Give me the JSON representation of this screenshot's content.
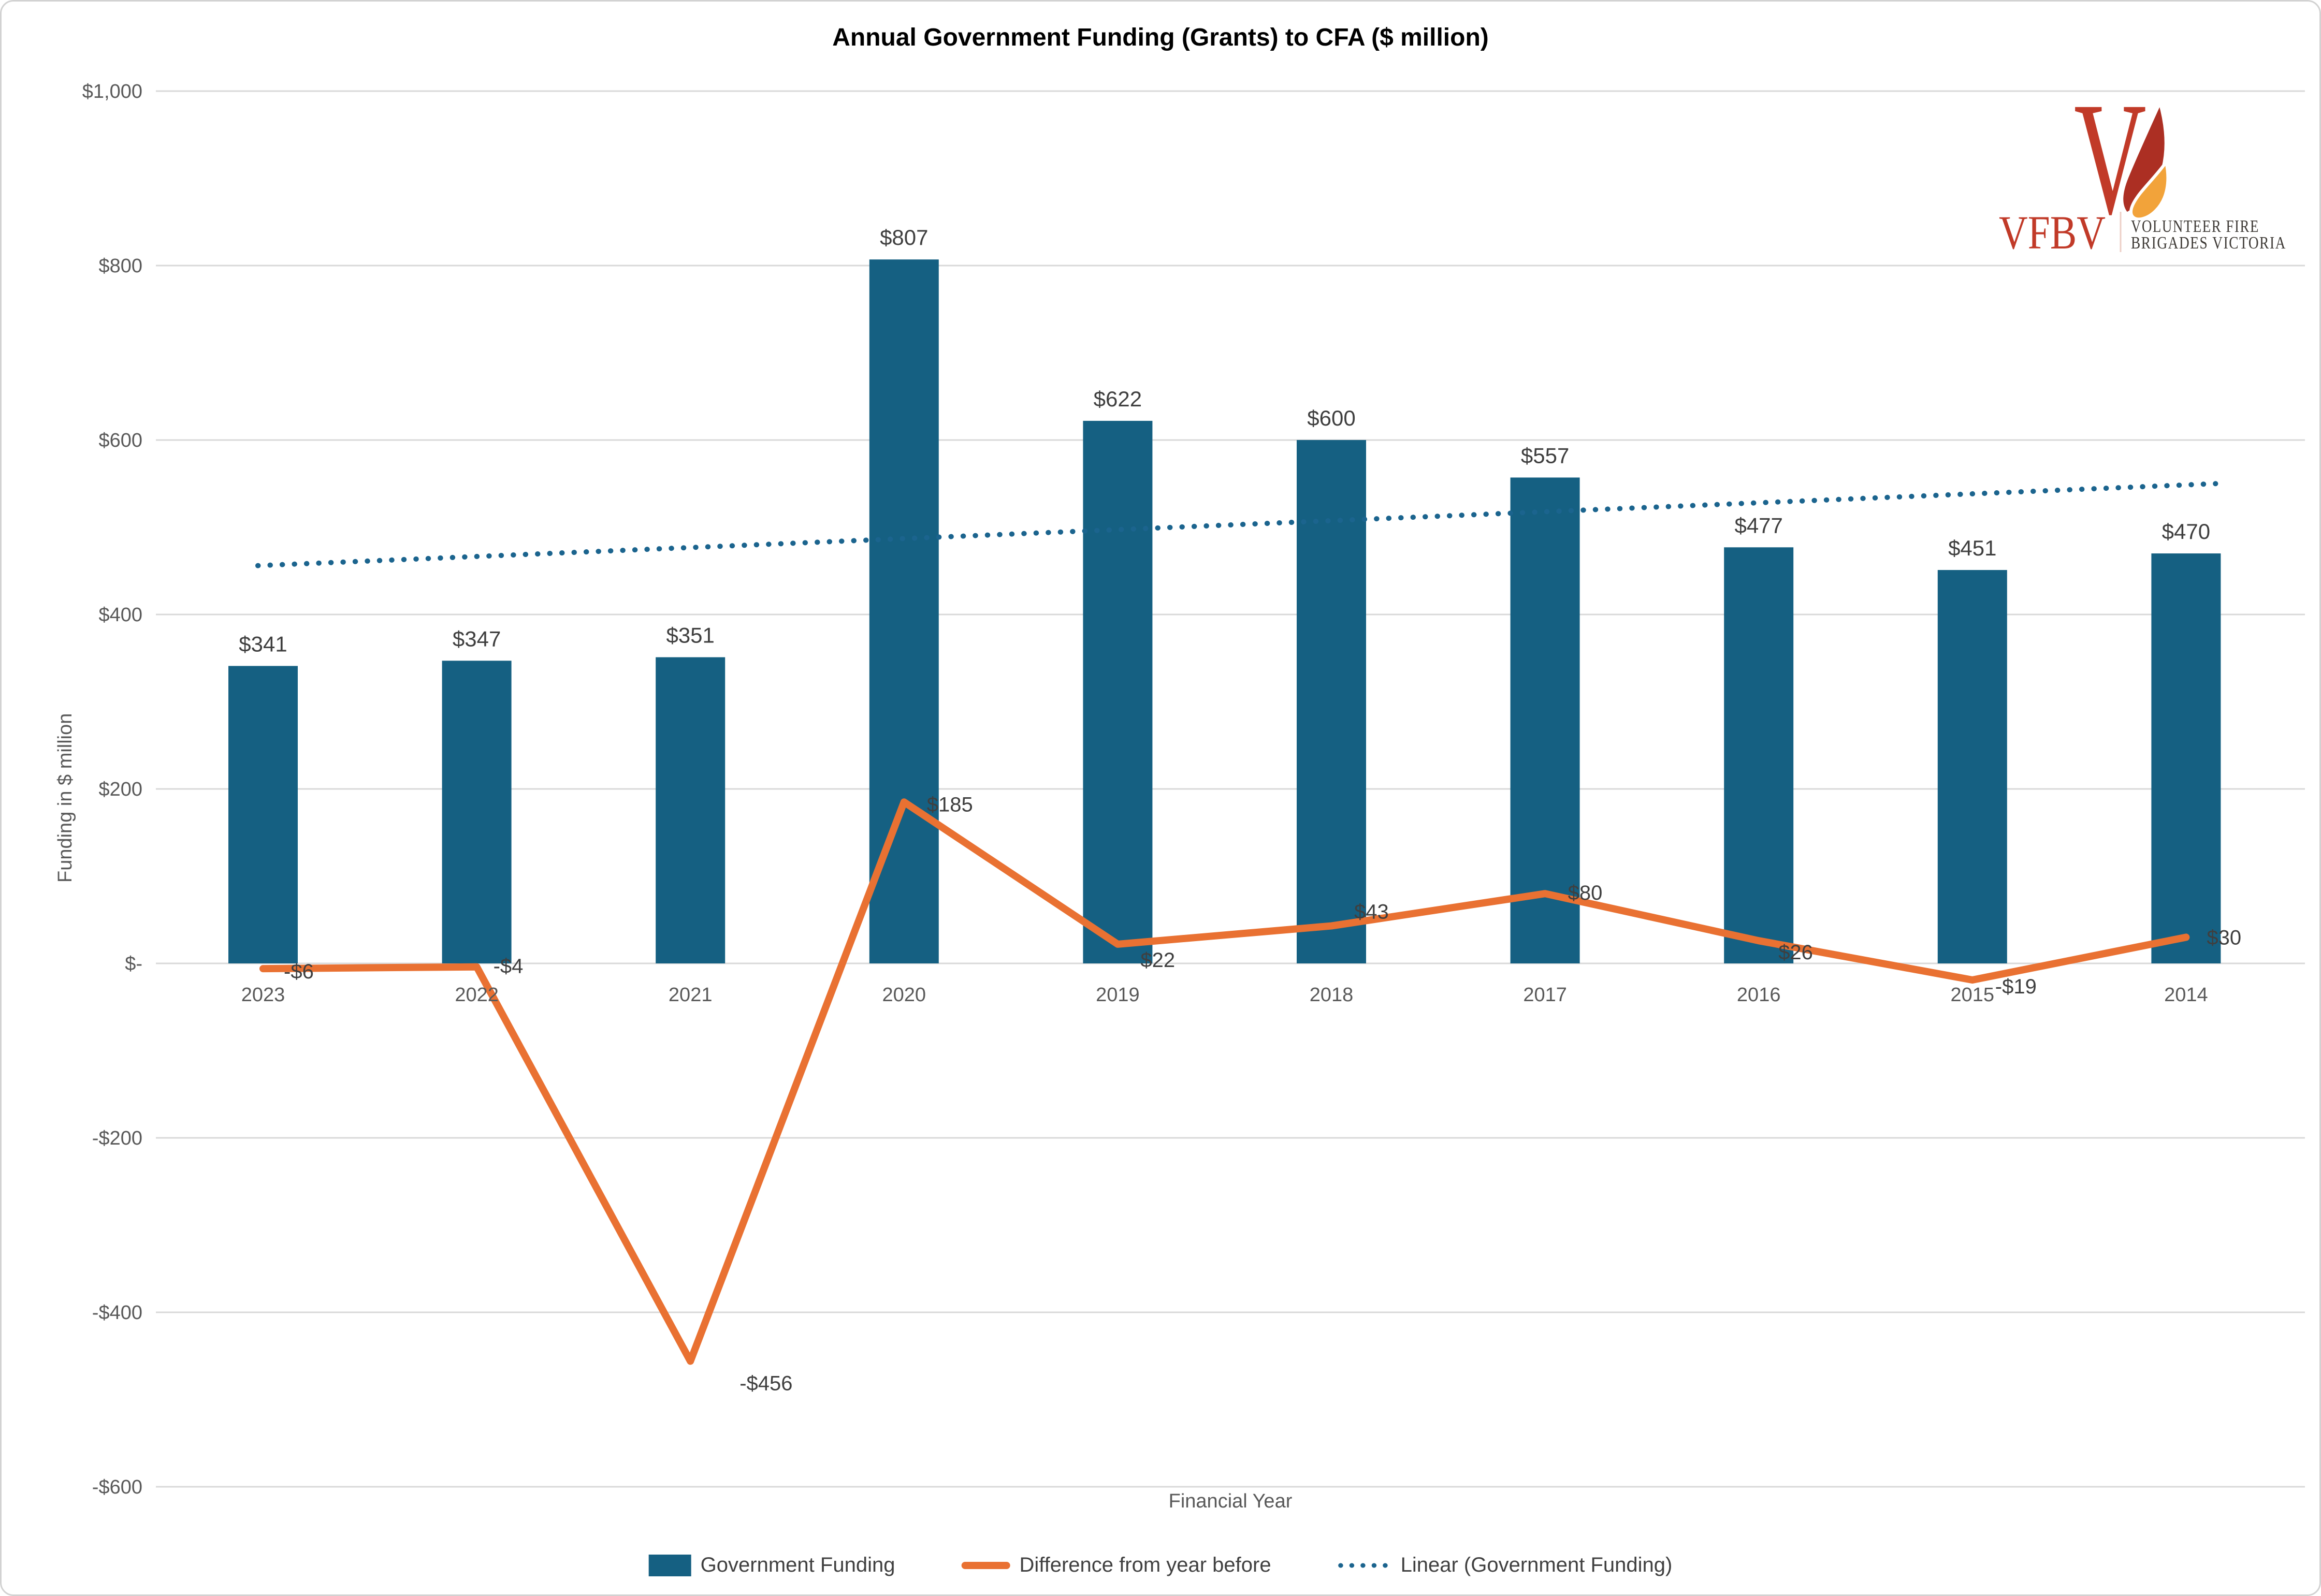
{
  "title": "Annual Government Funding (Grants) to CFA ($ million)",
  "logo": {
    "acronym": "VFBV",
    "name_line1": "VOLUNTEER FIRE",
    "name_line2": "BRIGADES VICTORIA",
    "colors": {
      "red": "#c13a28",
      "flame_dark": "#ac2f23",
      "flame_orange": "#f2a33a",
      "name_text": "#3d3935"
    }
  },
  "chart_data": {
    "type": "bar",
    "categories": [
      "2023",
      "2022",
      "2021",
      "2020",
      "2019",
      "2018",
      "2017",
      "2016",
      "2015",
      "2014"
    ],
    "series": [
      {
        "name": "Government Funding",
        "type": "bar",
        "color": "#156082",
        "values": [
          341,
          347,
          351,
          807,
          622,
          600,
          557,
          477,
          451,
          470
        ],
        "labels": [
          "$341",
          "$347",
          "$351",
          "$807",
          "$622",
          "$600",
          "$557",
          "$477",
          "$451",
          "$470"
        ]
      },
      {
        "name": "Difference from year before",
        "type": "line",
        "color": "#e97132",
        "values": [
          -6,
          -4,
          -456,
          185,
          22,
          43,
          80,
          26,
          -19,
          30
        ],
        "labels": [
          "-$6",
          "-$4",
          "-$456",
          "$185",
          "$22",
          "$43",
          "$80",
          "$26",
          "-$19",
          "$30"
        ]
      },
      {
        "name": "Linear (Government Funding)",
        "type": "trendline",
        "style": "dotted",
        "color": "#1b648e",
        "endpoint_values": [
          456,
          550
        ]
      }
    ],
    "xlabel": "Financial Year",
    "ylabel": "Funding in $ million",
    "y_ticks": [
      {
        "value": 1000,
        "label": "$1,000"
      },
      {
        "value": 800,
        "label": "$800"
      },
      {
        "value": 600,
        "label": "$600"
      },
      {
        "value": 400,
        "label": "$400"
      },
      {
        "value": 200,
        "label": "$200"
      },
      {
        "value": 0,
        "label": "$-"
      },
      {
        "value": -200,
        "label": "-$200"
      },
      {
        "value": -400,
        "label": "-$400"
      },
      {
        "value": -600,
        "label": "-$600"
      }
    ],
    "ylim": [
      -600,
      1000
    ],
    "grid": true,
    "gridline_color": "#d9d9d9",
    "legend_position": "bottom"
  }
}
